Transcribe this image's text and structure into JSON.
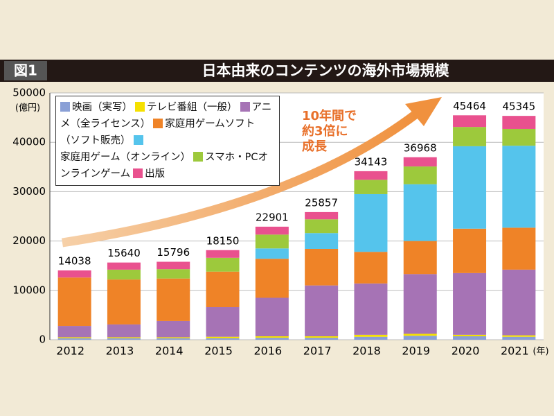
{
  "chart_data": {
    "type": "stacked_bar",
    "figure_label": "図1",
    "title": "日本由来のコンテンツの海外市場規模",
    "y_unit": "(億円)",
    "x_unit": "(年)",
    "annotation": [
      "10年間で",
      "約3倍に",
      "成長"
    ],
    "categories": [
      "2012",
      "2013",
      "2014",
      "2015",
      "2016",
      "2017",
      "2018",
      "2019",
      "2020",
      "2021"
    ],
    "series": [
      {
        "name": "映画（実写）",
        "color": "#8aa0d6",
        "values": [
          300,
          300,
          300,
          300,
          400,
          400,
          600,
          800,
          700,
          600
        ]
      },
      {
        "name": "テレビ番組（一般）",
        "color": "#f5e000",
        "values": [
          200,
          200,
          200,
          300,
          300,
          300,
          400,
          400,
          300,
          300
        ]
      },
      {
        "name": "アニメ（全ライセンス）",
        "color": "#a673b5",
        "values": [
          2300,
          2600,
          3300,
          6000,
          7800,
          10300,
          10400,
          12100,
          12500,
          13300
        ]
      },
      {
        "name": "家庭用ゲームソフト（ソフト販売）",
        "color": "#ef8327",
        "values": [
          9800,
          9100,
          8600,
          7200,
          7900,
          7400,
          6400,
          6700,
          9000,
          8500
        ]
      },
      {
        "name": "家庭用ゲーム（オンライン）",
        "color": "#55c4ec",
        "values": [
          0,
          0,
          0,
          0,
          2100,
          3200,
          11700,
          11500,
          16700,
          16600
        ]
      },
      {
        "name": "スマホ・PCオンラインゲーム",
        "color": "#9dc93c",
        "values": [
          0,
          2000,
          1900,
          2800,
          2800,
          2800,
          2900,
          3600,
          3900,
          3400
        ]
      },
      {
        "name": "出版",
        "color": "#e9518e",
        "values": [
          1438,
          1440,
          1496,
          1550,
          1601,
          1457,
          1743,
          1868,
          2364,
          2645
        ]
      }
    ],
    "totals": [
      14038,
      15640,
      15796,
      18150,
      22901,
      25857,
      34143,
      36968,
      45464,
      45345
    ],
    "ylim": [
      0,
      50000
    ],
    "yticks": [
      0,
      10000,
      20000,
      30000,
      40000,
      50000
    ],
    "grid": true,
    "legend": "upper left"
  }
}
